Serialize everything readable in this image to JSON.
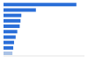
{
  "chart_data": {
    "type": "bar",
    "orientation": "horizontal",
    "categories": [
      null,
      null,
      null,
      null,
      null,
      null,
      null,
      null,
      null,
      null
    ],
    "values": [
      90,
      40,
      22,
      21,
      20,
      17,
      15,
      13,
      12,
      11
    ],
    "colors": [
      "#2a6ed8",
      "#2a6ed8",
      "#2a6ed8",
      "#2a6ed8",
      "#2a6ed8",
      "#2a6ed8",
      "#2a6ed8",
      "#2a6ed8",
      "#2a6ed8",
      "#a9c2e6"
    ],
    "xlim": [
      0,
      100
    ],
    "grid": false,
    "tick_labels": false
  }
}
